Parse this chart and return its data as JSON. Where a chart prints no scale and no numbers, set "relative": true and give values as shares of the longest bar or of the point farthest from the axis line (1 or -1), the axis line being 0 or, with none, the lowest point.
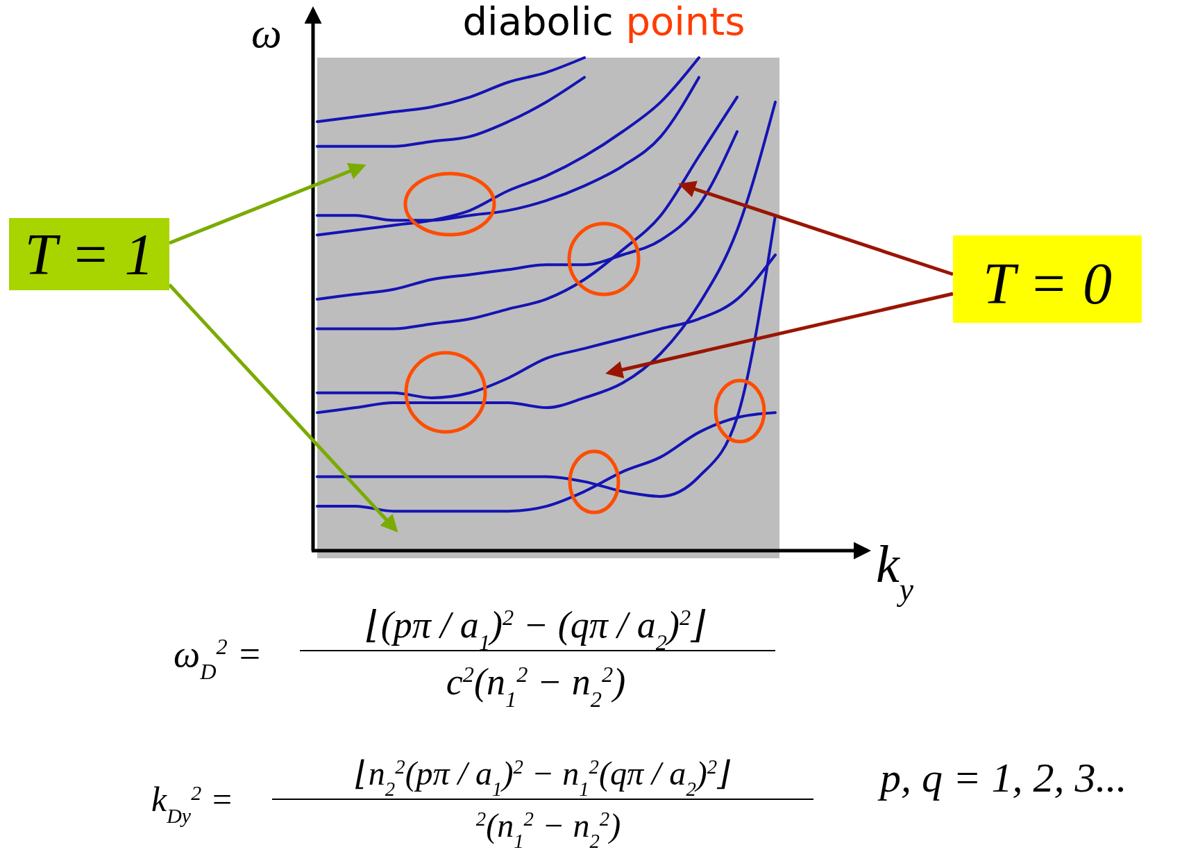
{
  "chart_data": {
    "type": "line",
    "title": "diabolic points",
    "xlabel": "k$_{y}$",
    "ylabel": "ω",
    "relative": true,
    "categories": [
      null,
      null,
      null,
      null,
      null,
      null,
      null,
      null,
      null,
      null,
      null,
      null,
      null
    ],
    "annotations": [
      "T = 1",
      "T = 0",
      "ω$_{D}$$^{2}$ =",
      "⌊(pπ / a$_{1}$)$^{2}$ − (qπ / a$_{2}$)$^{2}$⌋",
      "c$^{2}$(n$_{1}$$^{2}$ − n$_{2}$$^{2}$)",
      "k$_{Dy}$$^{2}$ =",
      "⌊n$_{2}$$^{2}$(pπ / a$_{1}$)$^{2}$ − n$_{1}$$^{2}$(qπ / a$_{2}$)$^{2}$⌋",
      "$^{2}$(n$_{1}$$^{2}$ − n$_{2}$$^{2}$)",
      "p, q = 1, 2, 3..."
    ],
    "series": [
      {
        "color": "#1414b4",
        "values": [
          0.87,
          0.88,
          0.89,
          0.9,
          0.92,
          0.95,
          0.97,
          1.0,
          null,
          null,
          null,
          null,
          null
        ]
      },
      {
        "color": "#1414b4",
        "values": [
          0.82,
          0.82,
          0.82,
          0.83,
          0.84,
          0.87,
          0.91,
          0.96,
          null,
          null,
          null,
          null,
          null
        ]
      },
      {
        "color": "#1414b4",
        "values": [
          0.68,
          0.68,
          0.67,
          0.67,
          0.68,
          0.69,
          0.71,
          0.74,
          0.78,
          0.84,
          0.96,
          null,
          null
        ]
      },
      {
        "color": "#1414b4",
        "values": [
          0.64,
          0.65,
          0.66,
          0.67,
          0.69,
          0.73,
          0.76,
          0.8,
          0.85,
          0.91,
          1.0,
          null,
          null
        ]
      },
      {
        "color": "#1414b4",
        "values": [
          0.51,
          0.52,
          0.53,
          0.55,
          0.56,
          0.57,
          0.58,
          0.58,
          0.6,
          0.63,
          0.7,
          0.85,
          null
        ]
      },
      {
        "color": "#1414b4",
        "values": [
          0.45,
          0.45,
          0.45,
          0.46,
          0.47,
          0.49,
          0.51,
          0.55,
          0.61,
          0.68,
          0.8,
          0.92,
          null
        ]
      },
      {
        "color": "#1414b4",
        "values": [
          0.32,
          0.32,
          0.32,
          0.31,
          0.32,
          0.35,
          0.39,
          0.41,
          0.43,
          0.45,
          0.47,
          0.51,
          0.6
        ]
      },
      {
        "color": "#1414b4",
        "values": [
          0.28,
          0.29,
          0.3,
          0.3,
          0.3,
          0.3,
          0.29,
          0.31,
          0.34,
          0.4,
          0.5,
          0.65,
          0.91
        ]
      },
      {
        "color": "#1414b4",
        "values": [
          0.15,
          0.15,
          0.15,
          0.15,
          0.15,
          0.15,
          0.15,
          0.14,
          0.12,
          0.11,
          0.15,
          0.27,
          0.68
        ]
      },
      {
        "color": "#1414b4",
        "values": [
          0.09,
          0.09,
          0.08,
          0.08,
          0.08,
          0.08,
          0.09,
          0.12,
          0.16,
          0.19,
          0.24,
          0.27,
          0.28
        ]
      }
    ]
  }
}
